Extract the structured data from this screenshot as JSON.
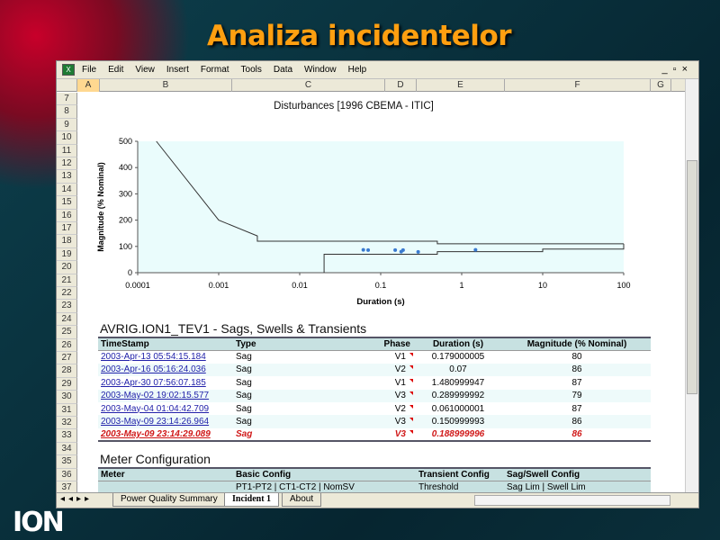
{
  "slide": {
    "title": "Analiza incidentelor",
    "logo": "ION"
  },
  "menu": [
    "File",
    "Edit",
    "View",
    "Insert",
    "Format",
    "Tools",
    "Data",
    "Window",
    "Help"
  ],
  "window_controls": [
    "-",
    "restore",
    "x"
  ],
  "columns": [
    "A",
    "B",
    "C",
    "D",
    "E",
    "F",
    "G"
  ],
  "rows": [
    "7",
    "8",
    "9",
    "10",
    "11",
    "12",
    "13",
    "14",
    "15",
    "16",
    "17",
    "18",
    "19",
    "20",
    "21",
    "22",
    "23",
    "24",
    "25",
    "26",
    "27",
    "28",
    "29",
    "30",
    "31",
    "32",
    "33",
    "34",
    "35",
    "36",
    "37"
  ],
  "chart_data": {
    "type": "scatter",
    "title": "Disturbances [1996 CBEMA - ITIC]",
    "xlabel": "Duration (s)",
    "ylabel": "Magnitude (% Nominal)",
    "xscale": "log",
    "xlim": [
      0.0001,
      100
    ],
    "ylim": [
      0,
      500
    ],
    "xticks": [
      "0.0001",
      "0.001",
      "0.01",
      "0.1",
      "1",
      "10",
      "100"
    ],
    "yticks": [
      "0",
      "100",
      "200",
      "300",
      "400",
      "500"
    ],
    "curve_upper": [
      [
        0.00017,
        500
      ],
      [
        0.001,
        200
      ],
      [
        0.003,
        140
      ],
      [
        0.003,
        120
      ],
      [
        0.5,
        120
      ],
      [
        0.5,
        110
      ],
      [
        100,
        110
      ]
    ],
    "curve_lower": [
      [
        100,
        110
      ],
      [
        100,
        90
      ],
      [
        10,
        90
      ],
      [
        10,
        80
      ],
      [
        0.5,
        80
      ],
      [
        0.5,
        70
      ],
      [
        0.02,
        70
      ],
      [
        0.02,
        0
      ]
    ],
    "points": [
      [
        0.179,
        80
      ],
      [
        0.07,
        86
      ],
      [
        1.481,
        87
      ],
      [
        0.29,
        79
      ],
      [
        0.061,
        87
      ],
      [
        0.151,
        86
      ],
      [
        0.189,
        86
      ]
    ]
  },
  "events": {
    "title": "AVRIG.ION1_TEV1 - Sags, Swells & Transients",
    "headers": [
      "TimeStamp",
      "Type",
      "Phase",
      "Duration (s)",
      "Magnitude (% Nominal)"
    ],
    "rows": [
      [
        "2003-Apr-13 05:54:15.184",
        "Sag",
        "V1",
        "0.179000005",
        "80"
      ],
      [
        "2003-Apr-16 05:16:24.036",
        "Sag",
        "V2",
        "0.07",
        "86"
      ],
      [
        "2003-Apr-30 07:56:07.185",
        "Sag",
        "V1",
        "1.480999947",
        "87"
      ],
      [
        "2003-May-02 19:02:15.577",
        "Sag",
        "V3",
        "0.289999992",
        "79"
      ],
      [
        "2003-May-04 01:04:42.709",
        "Sag",
        "V2",
        "0.061000001",
        "87"
      ],
      [
        "2003-May-09 23:14:26.964",
        "Sag",
        "V3",
        "0.150999993",
        "86"
      ],
      [
        "2003-May-09 23:14:29.089",
        "Sag",
        "V3",
        "0.188999996",
        "86"
      ]
    ]
  },
  "meter": {
    "title": "Meter Configuration",
    "headers": [
      "Meter",
      "Basic Config",
      "Transient Config",
      "Sag/Swell Config"
    ],
    "row": [
      "",
      "PT1-PT2 | CT1-CT2 | NomSV",
      "Threshold",
      "Sag Lim | Swell Lim"
    ]
  },
  "tabs": [
    "Power Quality Summary",
    "Incident 1",
    "About"
  ],
  "colors": {
    "plot_bg": "#eafcfc",
    "point": "#3a7ad0",
    "title": "#ff9f10",
    "critical": "#d01818"
  }
}
